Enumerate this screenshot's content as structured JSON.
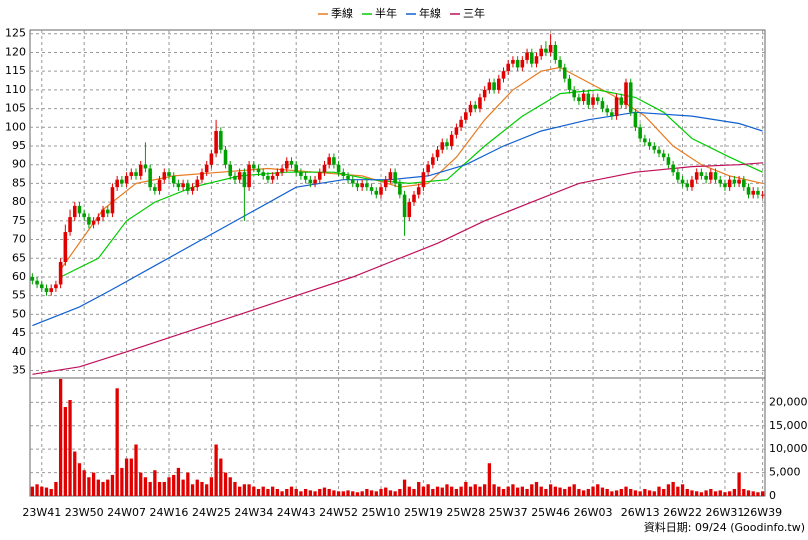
{
  "chart_data": {
    "type": "candlestick",
    "categories": [
      null,
      null,
      "23W41",
      null,
      null,
      null,
      null,
      null,
      null,
      null,
      null,
      "23W50",
      null,
      null,
      null,
      null,
      null,
      null,
      null,
      null,
      "24W07",
      null,
      null,
      null,
      null,
      null,
      null,
      null,
      null,
      "24W16",
      null,
      null,
      null,
      null,
      null,
      null,
      null,
      null,
      "24W25",
      null,
      null,
      null,
      null,
      null,
      null,
      null,
      null,
      "24W34",
      null,
      null,
      null,
      null,
      null,
      null,
      null,
      null,
      "24W43",
      null,
      null,
      null,
      null,
      null,
      null,
      null,
      null,
      "24W52",
      null,
      null,
      null,
      null,
      null,
      null,
      null,
      null,
      "25W10",
      null,
      null,
      null,
      null,
      null,
      null,
      null,
      null,
      "25W19",
      null,
      null,
      null,
      null,
      null,
      null,
      null,
      null,
      "25W28",
      null,
      null,
      null,
      null,
      null,
      null,
      null,
      null,
      "25W37",
      null,
      null,
      null,
      null,
      null,
      null,
      null,
      null,
      "25W46",
      null,
      null,
      null,
      null,
      null,
      null,
      null,
      null,
      "26W03",
      null,
      null,
      null,
      null,
      null,
      null,
      null,
      null,
      null,
      "26W13",
      null,
      null,
      null,
      null,
      null,
      null,
      null,
      null,
      "26W22",
      null,
      null,
      null,
      null,
      null,
      null,
      null,
      null,
      "26W31",
      null,
      null,
      null,
      null,
      null,
      null,
      null,
      "26W39"
    ],
    "open": [
      60,
      59,
      58,
      57,
      56,
      57,
      58,
      64,
      72,
      76,
      79,
      77,
      76,
      74,
      75,
      76,
      78,
      77,
      84,
      86,
      85,
      87,
      88,
      87,
      90,
      89,
      84,
      83,
      86,
      88,
      87,
      85,
      84,
      85,
      83,
      84,
      86,
      88,
      90,
      93,
      99,
      94,
      90,
      87,
      86,
      88,
      84,
      90,
      89,
      88,
      87,
      86,
      87,
      88,
      89,
      91,
      90,
      88,
      87,
      86,
      85,
      86,
      88,
      90,
      92,
      90,
      88,
      87,
      86,
      85,
      84,
      85,
      84,
      83,
      82,
      84,
      86,
      88,
      85,
      82,
      76,
      80,
      82,
      84,
      88,
      90,
      92,
      94,
      96,
      95,
      98,
      100,
      102,
      104,
      106,
      105,
      108,
      110,
      112,
      110,
      113,
      115,
      117,
      118,
      116,
      118,
      120,
      117,
      119,
      121,
      120,
      122,
      118,
      116,
      113,
      110,
      108,
      107,
      109,
      106,
      108,
      107,
      105,
      104,
      103,
      108,
      106,
      112,
      104,
      100,
      97,
      96,
      95,
      94,
      93,
      92,
      90,
      88,
      86,
      85,
      84,
      86,
      88,
      87,
      86,
      88,
      86,
      85,
      84,
      86,
      85,
      86,
      84,
      82,
      83,
      82
    ],
    "high": [
      61,
      60,
      59,
      58,
      58,
      59,
      65,
      74,
      78,
      80,
      80,
      78,
      77,
      76,
      77,
      79,
      79,
      85,
      87,
      87,
      88,
      89,
      89,
      91,
      96,
      90,
      85,
      87,
      89,
      89,
      88,
      86,
      86,
      86,
      85,
      87,
      89,
      91,
      94,
      102,
      100,
      95,
      91,
      88,
      89,
      89,
      91,
      91,
      90,
      89,
      88,
      88,
      89,
      90,
      92,
      92,
      91,
      89,
      88,
      87,
      87,
      89,
      91,
      93,
      93,
      91,
      89,
      88,
      87,
      86,
      86,
      86,
      85,
      84,
      85,
      87,
      89,
      89,
      86,
      83,
      81,
      83,
      85,
      89,
      91,
      93,
      95,
      97,
      97,
      99,
      101,
      103,
      105,
      107,
      107,
      109,
      111,
      113,
      113,
      114,
      116,
      118,
      119,
      119,
      119,
      121,
      121,
      120,
      122,
      123,
      125,
      123,
      119,
      117,
      114,
      111,
      109,
      110,
      110,
      109,
      109,
      108,
      106,
      105,
      109,
      109,
      113,
      113,
      105,
      101,
      98,
      97,
      96,
      95,
      94,
      93,
      91,
      89,
      87,
      86,
      87,
      89,
      89,
      88,
      89,
      89,
      87,
      86,
      87,
      87,
      87,
      87,
      85,
      84,
      84,
      83
    ],
    "low": [
      58,
      57,
      56,
      55,
      55,
      56,
      57,
      63,
      71,
      75,
      76,
      75,
      73,
      73,
      74,
      75,
      76,
      76,
      83,
      84,
      84,
      86,
      86,
      86,
      88,
      83,
      82,
      82,
      85,
      86,
      84,
      83,
      83,
      82,
      82,
      83,
      85,
      87,
      89,
      92,
      93,
      89,
      86,
      85,
      85,
      75,
      83,
      88,
      87,
      86,
      85,
      85,
      86,
      87,
      88,
      89,
      87,
      86,
      85,
      84,
      84,
      85,
      87,
      89,
      89,
      87,
      86,
      85,
      84,
      83,
      83,
      83,
      82,
      81,
      81,
      83,
      85,
      84,
      81,
      71,
      75,
      79,
      81,
      83,
      87,
      89,
      91,
      93,
      94,
      94,
      97,
      99,
      101,
      103,
      104,
      104,
      107,
      109,
      109,
      109,
      112,
      114,
      116,
      115,
      115,
      117,
      116,
      116,
      118,
      119,
      119,
      117,
      115,
      112,
      109,
      107,
      106,
      106,
      105,
      105,
      106,
      104,
      103,
      102,
      102,
      105,
      105,
      103,
      99,
      96,
      95,
      94,
      93,
      92,
      91,
      89,
      87,
      85,
      84,
      83,
      83,
      85,
      86,
      85,
      85,
      85,
      84,
      83,
      83,
      84,
      84,
      83,
      81,
      81,
      81,
      81
    ],
    "close": [
      59,
      58,
      57,
      56,
      57,
      58,
      64,
      72,
      76,
      79,
      77,
      76,
      74,
      75,
      76,
      78,
      77,
      84,
      86,
      85,
      87,
      88,
      87,
      90,
      89,
      84,
      83,
      86,
      88,
      87,
      85,
      84,
      85,
      83,
      84,
      86,
      88,
      90,
      93,
      99,
      94,
      90,
      87,
      86,
      88,
      84,
      90,
      89,
      88,
      87,
      86,
      87,
      88,
      89,
      91,
      90,
      88,
      87,
      86,
      85,
      86,
      88,
      90,
      92,
      90,
      88,
      87,
      86,
      85,
      84,
      85,
      84,
      83,
      82,
      84,
      86,
      88,
      85,
      82,
      76,
      80,
      82,
      84,
      88,
      90,
      92,
      94,
      96,
      95,
      98,
      100,
      102,
      104,
      106,
      105,
      108,
      110,
      112,
      110,
      113,
      115,
      117,
      118,
      116,
      118,
      120,
      117,
      119,
      121,
      120,
      122,
      118,
      116,
      113,
      110,
      108,
      107,
      109,
      106,
      108,
      107,
      105,
      104,
      103,
      108,
      106,
      112,
      104,
      100,
      97,
      96,
      95,
      94,
      93,
      92,
      90,
      88,
      86,
      85,
      84,
      86,
      88,
      87,
      86,
      88,
      86,
      85,
      84,
      86,
      85,
      86,
      84,
      82,
      83,
      82,
      82
    ],
    "up_color": "#e00000",
    "down_color": "#00a000",
    "ylim": [
      33,
      126
    ],
    "yticks": [
      35,
      40,
      45,
      50,
      55,
      60,
      65,
      70,
      75,
      80,
      85,
      90,
      95,
      100,
      105,
      110,
      115,
      120,
      125
    ],
    "lines": [
      {
        "name": "季線",
        "color": "#e87a20",
        "x": [
          6,
          15,
          22,
          30,
          40,
          50,
          60,
          70,
          78,
          84,
          90,
          96,
          102,
          108,
          112,
          118,
          124,
          130,
          136,
          142,
          148,
          155
        ],
        "values": [
          62,
          78,
          85,
          87,
          88,
          89,
          88,
          87,
          84,
          85,
          92,
          102,
          110,
          115,
          116,
          112,
          108,
          103,
          95,
          90,
          87,
          85
        ]
      },
      {
        "name": "半年",
        "color": "#00cc00",
        "x": [
          6,
          14,
          20,
          26,
          34,
          44,
          54,
          64,
          72,
          80,
          88,
          96,
          104,
          112,
          120,
          128,
          134,
          140,
          148,
          155
        ],
        "values": [
          60,
          65,
          75,
          80,
          84,
          87,
          88,
          88,
          86,
          85,
          86,
          95,
          103,
          109,
          110,
          108,
          104,
          97,
          92,
          88
        ]
      },
      {
        "name": "年線",
        "color": "#1060d0",
        "x": [
          0,
          10,
          16,
          26,
          36,
          46,
          56,
          66,
          76,
          84,
          92,
          100,
          108,
          118,
          128,
          140,
          150,
          155
        ],
        "values": [
          47,
          52,
          56,
          63,
          70,
          77,
          84,
          86,
          86,
          87,
          90,
          95,
          99,
          102,
          104,
          103,
          101,
          99
        ]
      },
      {
        "name": "三年",
        "color": "#c0105a",
        "x": [
          0,
          10,
          20,
          32,
          44,
          56,
          68,
          76,
          86,
          96,
          106,
          116,
          128,
          140,
          150,
          155
        ],
        "values": [
          34,
          36,
          40,
          45,
          50,
          55,
          60,
          64,
          69,
          75,
          80,
          85,
          88,
          89.5,
          90,
          90.5
        ]
      }
    ],
    "volume": {
      "color": "#e00000",
      "ylim": [
        0,
        25200
      ],
      "yticks": [
        0,
        {
          "value": 5000,
          "label": "5,000"
        },
        {
          "value": 10000,
          "label": "10,000"
        },
        {
          "value": 15000,
          "label": "15,000"
        },
        {
          "value": 20000,
          "label": "20,000"
        }
      ],
      "values": [
        2000,
        2500,
        2000,
        1800,
        1500,
        3000,
        25000,
        19000,
        20500,
        9500,
        7000,
        5500,
        4000,
        5000,
        3500,
        3000,
        3500,
        4500,
        23000,
        6000,
        8000,
        8000,
        11000,
        5000,
        4000,
        3000,
        5500,
        3000,
        3000,
        4000,
        4500,
        6000,
        3500,
        5000,
        2500,
        3500,
        3000,
        2500,
        4000,
        11000,
        8000,
        5000,
        4000,
        3000,
        2000,
        2500,
        2500,
        2000,
        1500,
        2000,
        1500,
        2000,
        1500,
        1000,
        1500,
        2000,
        1500,
        1000,
        1500,
        1200,
        1000,
        1500,
        1800,
        1500,
        1200,
        1000,
        1000,
        1200,
        1000,
        800,
        1000,
        1500,
        1200,
        1000,
        1500,
        1800,
        1200,
        1000,
        1500,
        3500,
        2000,
        1500,
        3000,
        2000,
        2500,
        1500,
        2000,
        1800,
        2500,
        2000,
        1500,
        2000,
        3000,
        2000,
        2500,
        2000,
        2500,
        7000,
        2500,
        2000,
        1500,
        2000,
        2500,
        1800,
        2000,
        1500,
        2500,
        3000,
        2000,
        1500,
        2500,
        2000,
        1800,
        1500,
        2000,
        2500,
        1500,
        1200,
        1500,
        2000,
        2500,
        1800,
        1500,
        1000,
        1200,
        1500,
        2000,
        1500,
        1200,
        1000,
        1500,
        1200,
        1000,
        2000,
        1500,
        2500,
        3000,
        2000,
        2500,
        1500,
        1200,
        1000,
        800,
        1200,
        1500,
        1000,
        1200,
        800,
        1000,
        1500,
        5000,
        1500,
        1200,
        1000,
        800,
        1000
      ]
    },
    "grid": true,
    "footnote": "資料日期: 09/24  (Goodinfo.tw)"
  }
}
